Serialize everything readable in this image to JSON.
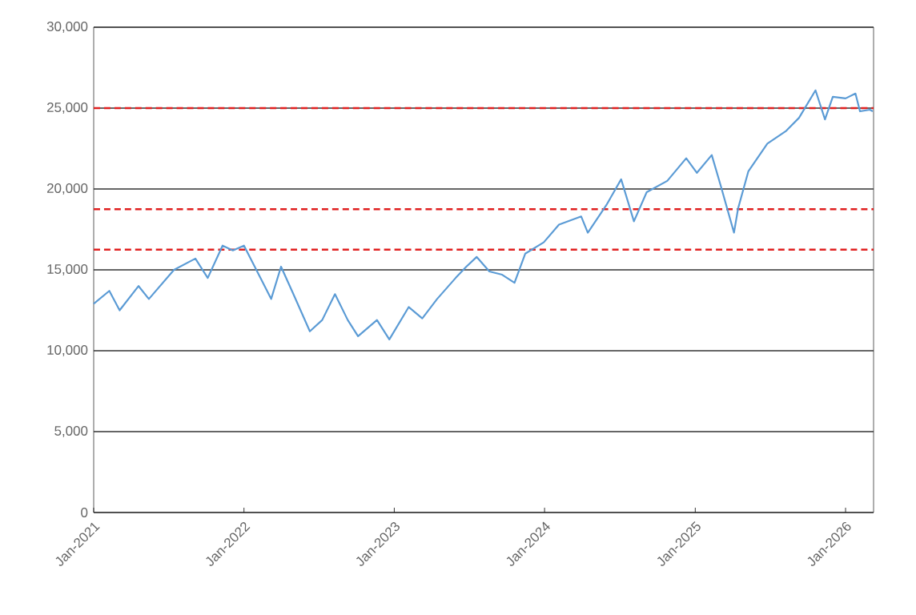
{
  "chart_data": {
    "type": "line",
    "x": [
      "2021-01-01",
      "2021-02-08",
      "2021-03-05",
      "2021-04-20",
      "2021-05-15",
      "2021-07-15",
      "2021-09-05",
      "2021-10-05",
      "2021-11-10",
      "2021-12-05",
      "2022-01-01",
      "2022-02-10",
      "2022-03-08",
      "2022-04-01",
      "2022-05-01",
      "2022-06-10",
      "2022-07-10",
      "2022-08-10",
      "2022-09-10",
      "2022-10-05",
      "2022-11-20",
      "2022-12-20",
      "2023-02-05",
      "2023-03-10",
      "2023-04-15",
      "2023-05-30",
      "2023-06-25",
      "2023-07-20",
      "2023-08-20",
      "2023-09-20",
      "2023-10-20",
      "2023-11-15",
      "2023-12-30",
      "2024-02-05",
      "2024-03-30",
      "2024-04-15",
      "2024-05-30",
      "2024-07-05",
      "2024-08-05",
      "2024-09-05",
      "2024-10-25",
      "2024-12-10",
      "2025-01-05",
      "2025-02-10",
      "2025-03-05",
      "2025-04-05",
      "2025-04-15",
      "2025-05-10",
      "2025-06-25",
      "2025-08-10",
      "2025-09-10",
      "2025-10-20",
      "2025-11-12",
      "2025-12-01",
      "2026-01-01",
      "2026-01-25",
      "2026-02-05",
      "2026-03-01",
      "2026-03-08"
    ],
    "series": [
      {
        "color": "#5b9bd5",
        "values": [
          12900,
          13700,
          12500,
          14000,
          13200,
          15000,
          15700,
          14500,
          16500,
          16200,
          16500,
          14500,
          13200,
          15200,
          13500,
          11200,
          11900,
          13500,
          11900,
          10900,
          11900,
          10700,
          12700,
          12000,
          13200,
          14500,
          15200,
          15800,
          14900,
          14700,
          14200,
          16000,
          16700,
          17800,
          18300,
          17300,
          19000,
          20600,
          18000,
          19800,
          20500,
          21900,
          21000,
          22100,
          20100,
          17300,
          18800,
          21100,
          22800,
          23600,
          24400,
          26100,
          24300,
          25700,
          25600,
          25900,
          24800,
          24900,
          24800
        ]
      }
    ],
    "xlim": [
      "2021-01-01",
      "2026-03-10"
    ],
    "xticks": [
      {
        "value": "2021-01-01",
        "label": "Jan-2021"
      },
      {
        "value": "2022-01-01",
        "label": "Jan-2022"
      },
      {
        "value": "2023-01-01",
        "label": "Jan-2023"
      },
      {
        "value": "2024-01-01",
        "label": "Jan-2024"
      },
      {
        "value": "2025-01-01",
        "label": "Jan-2025"
      },
      {
        "value": "2026-01-01",
        "label": "Jan-2026"
      }
    ],
    "ylim": [
      0,
      30000
    ],
    "yticks": [
      0,
      {
        "value": 5000,
        "label": "5,000"
      },
      {
        "value": 10000,
        "label": "10,000"
      },
      {
        "value": 15000,
        "label": "15,000"
      },
      {
        "value": 20000,
        "label": "20,000"
      },
      {
        "value": 25000,
        "label": "25,000"
      },
      {
        "value": 30000,
        "label": "30,000"
      }
    ],
    "grid": "y",
    "ref_lines": [
      {
        "axis": "y",
        "value": 25000,
        "color": "#e02020",
        "line_style": "dashed"
      },
      {
        "axis": "y",
        "value": 18750,
        "color": "#e02020",
        "line_style": "dashed"
      },
      {
        "axis": "y",
        "value": 16250,
        "color": "#e02020",
        "line_style": "dashed"
      }
    ]
  }
}
